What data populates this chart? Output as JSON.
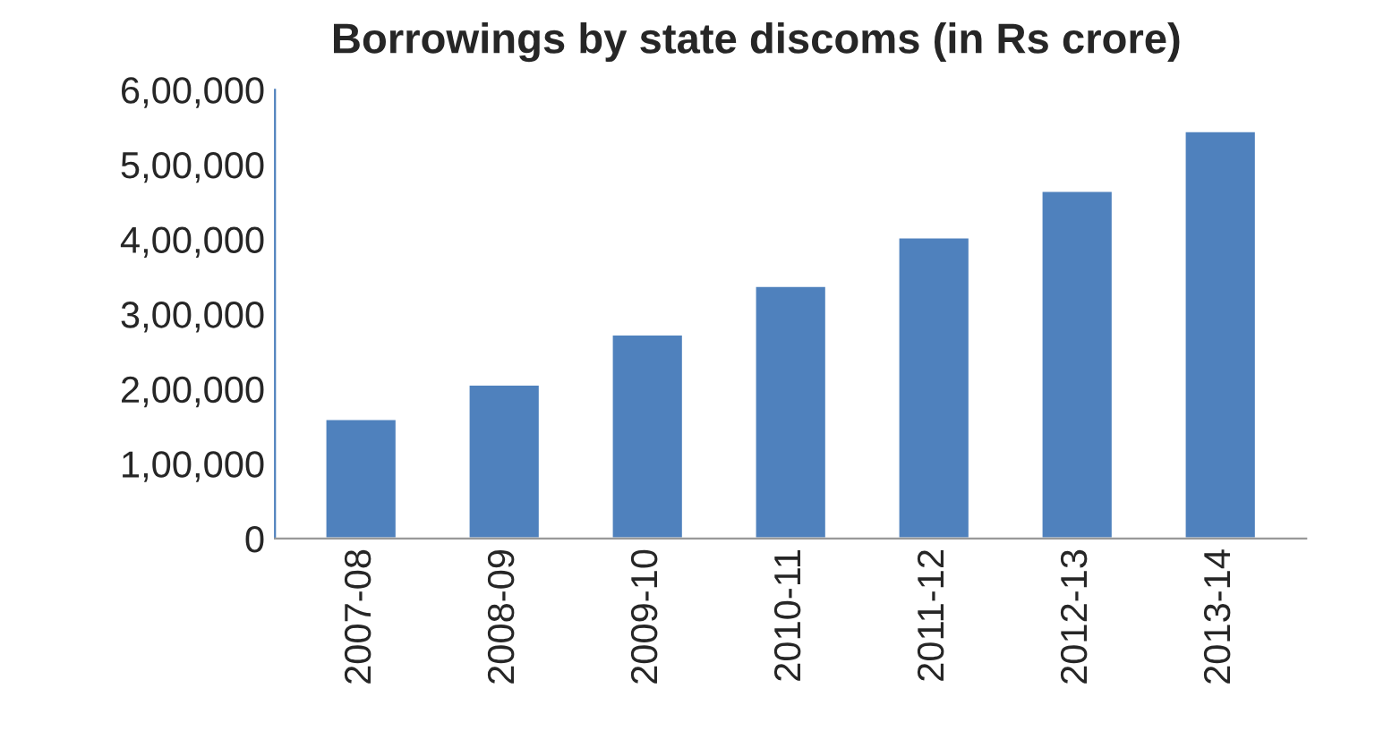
{
  "chart_data": {
    "type": "bar",
    "title": "Borrowings by state discoms (in Rs crore)",
    "categories": [
      "2007-08",
      "2008-09",
      "2009-10",
      "2010-11",
      "2011-12",
      "2012-13",
      "2013-14"
    ],
    "values": [
      160000,
      206000,
      273000,
      338000,
      403000,
      465000,
      545000
    ],
    "color": "#4f81bd",
    "ylim": [
      0,
      600000
    ],
    "yticks": [
      {
        "value": 0,
        "label": "0"
      },
      {
        "value": 100000,
        "label": "1,00,000"
      },
      {
        "value": 200000,
        "label": "2,00,000"
      },
      {
        "value": 300000,
        "label": "3,00,000"
      },
      {
        "value": 400000,
        "label": "4,00,000"
      },
      {
        "value": 500000,
        "label": "5,00,000"
      },
      {
        "value": 600000,
        "label": "6,00,000"
      }
    ],
    "grid": false,
    "legend": false
  }
}
